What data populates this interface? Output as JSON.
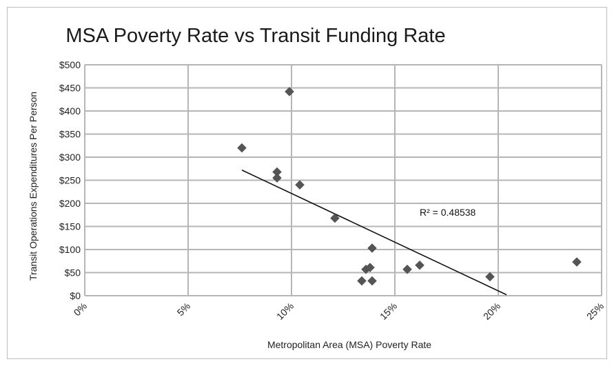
{
  "chart_data": {
    "type": "scatter",
    "title": "MSA Poverty Rate vs Transit Funding Rate",
    "xlabel": "Metropolitan Area (MSA) Poverty Rate",
    "ylabel": "Transit Operations Expenditures Per Person",
    "xlim": [
      0,
      25
    ],
    "ylim": [
      0,
      500
    ],
    "x_ticks": [
      0,
      5,
      10,
      15,
      20,
      25
    ],
    "x_tick_labels": [
      "0%",
      "5%",
      "10%",
      "15%",
      "20%",
      "25%"
    ],
    "y_ticks": [
      0,
      50,
      100,
      150,
      200,
      250,
      300,
      350,
      400,
      450,
      500
    ],
    "y_tick_labels": [
      "$0",
      "$50",
      "$100",
      "$150",
      "$200",
      "$250",
      "$300",
      "$350",
      "$400",
      "$450",
      "$500"
    ],
    "grid": true,
    "legend": "none",
    "colors": {
      "marker": "#555555",
      "grid": "#b5b5b5",
      "trendline": "#111111",
      "frame": "#bdbdbd"
    },
    "points": [
      {
        "x": 7.6,
        "y": 320
      },
      {
        "x": 9.9,
        "y": 442
      },
      {
        "x": 9.3,
        "y": 268
      },
      {
        "x": 9.3,
        "y": 255
      },
      {
        "x": 10.4,
        "y": 240
      },
      {
        "x": 12.1,
        "y": 168
      },
      {
        "x": 13.9,
        "y": 103
      },
      {
        "x": 13.6,
        "y": 57
      },
      {
        "x": 13.8,
        "y": 61
      },
      {
        "x": 13.4,
        "y": 32
      },
      {
        "x": 13.9,
        "y": 32
      },
      {
        "x": 15.6,
        "y": 57
      },
      {
        "x": 16.2,
        "y": 66
      },
      {
        "x": 19.6,
        "y": 41
      },
      {
        "x": 23.8,
        "y": 73
      }
    ],
    "trendline": {
      "type": "linear",
      "x_start": 7.6,
      "y_start": 272,
      "x_end": 20.4,
      "y_end": 2
    },
    "annotation": {
      "text": "R² = 0.48538",
      "x": 16.2,
      "y": 173
    }
  }
}
